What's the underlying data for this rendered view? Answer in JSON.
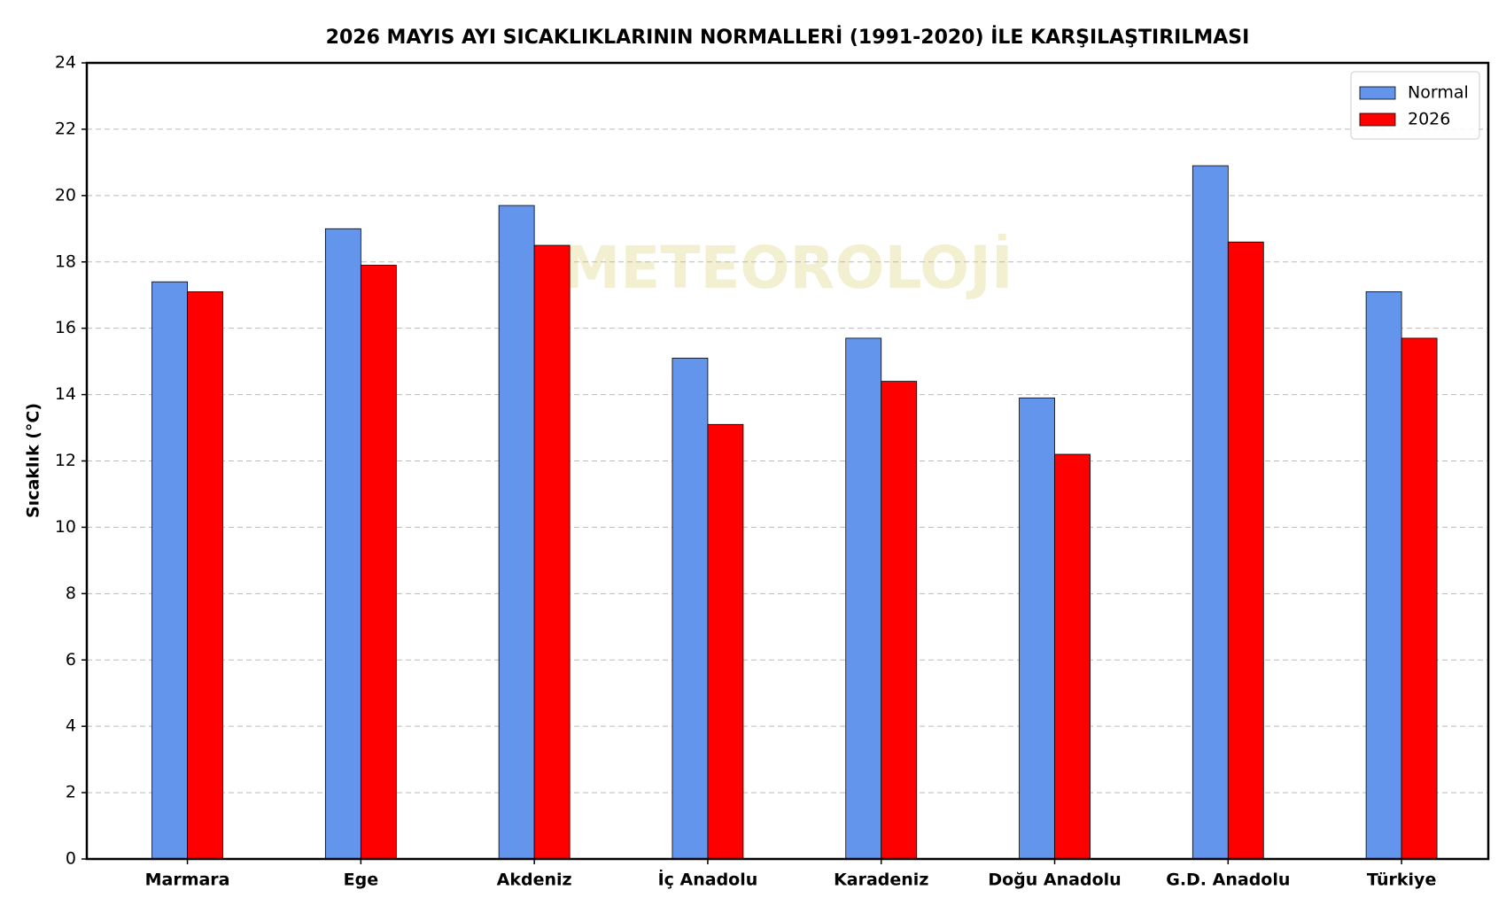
{
  "chart_data": {
    "type": "bar",
    "title": "2026 MAYIS AYI SICAKLIKLARININ NORMALLERİ (1991-2020) İLE KARŞILAŞTIRILMASI",
    "y_label": "Sıcaklık (°C)",
    "watermark": "METEOROLOJİ",
    "categories": [
      "Marmara",
      "Ege",
      "Akdeniz",
      "İç Anadolu",
      "Karadeniz",
      "Doğu Anadolu",
      "G.D. Anadolu",
      "Türkiye"
    ],
    "series": [
      {
        "name": "Normal",
        "color": "#6495ed",
        "values": [
          17.4,
          19.0,
          19.7,
          15.1,
          15.7,
          13.9,
          20.9,
          17.1
        ]
      },
      {
        "name": "2026",
        "color": "#ff0000",
        "values": [
          17.1,
          17.9,
          18.5,
          13.1,
          14.4,
          12.2,
          18.6,
          15.7
        ]
      }
    ],
    "ylim": [
      0,
      24
    ],
    "yticks": [
      0,
      2,
      4,
      6,
      8,
      10,
      12,
      14,
      16,
      18,
      20,
      22,
      24
    ],
    "grid": true,
    "legend": "upper right"
  }
}
